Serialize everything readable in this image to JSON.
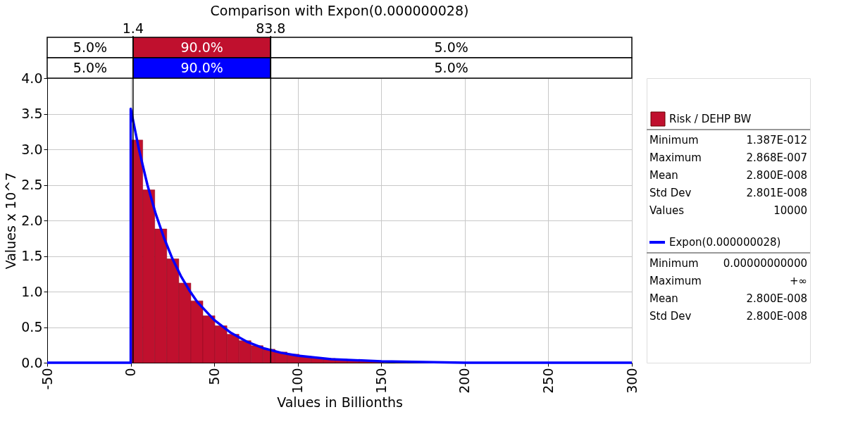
{
  "chart_data": [
    {
      "type": "histogram",
      "title": "Comparison with Expon(0.000000028)",
      "xlabel": "Values in Billionths",
      "ylabel": "Values x 10^7",
      "bins": [
        0,
        7.2,
        14.4,
        21.6,
        28.8,
        36,
        43.2,
        50.4,
        57.6,
        64.8,
        72,
        79.2,
        86.4,
        93.6,
        100.8,
        108,
        115.2,
        122.4,
        129.6,
        136.8,
        144,
        151.2,
        158.4,
        165.6
      ],
      "series": [
        {
          "name": "Risk / DEHP BW",
          "type": "histogram",
          "color": "#c0102e",
          "values": [
            3.13,
            2.43,
            1.88,
            1.46,
            1.12,
            0.87,
            0.66,
            0.52,
            0.4,
            0.31,
            0.24,
            0.19,
            0.15,
            0.12,
            0.09,
            0.07,
            0.06,
            0.05,
            0.04,
            0.03,
            0.02,
            null,
            0.01
          ]
        },
        {
          "name": "Expon(0.000000028)",
          "type": "line",
          "color": "#0000ff",
          "x": [
            -50,
            0,
            0,
            5,
            10,
            15,
            20,
            25,
            30,
            35,
            40,
            50,
            60,
            70,
            80,
            90,
            100,
            120,
            150,
            200,
            300
          ],
          "values": [
            0,
            0,
            3.57,
            2.99,
            2.5,
            2.09,
            1.75,
            1.46,
            1.22,
            1.02,
            0.85,
            0.6,
            0.42,
            0.29,
            0.2,
            0.14,
            0.1,
            0.05,
            0.02,
            0,
            0
          ]
        }
      ],
      "xlim": [
        -50,
        300
      ],
      "xticks": [
        -50,
        0,
        50,
        100,
        150,
        200,
        250,
        300
      ],
      "ylim": [
        0,
        4
      ],
      "yticks": [
        {
          "value": 0,
          "label": "0.0"
        },
        {
          "value": 0.5,
          "label": "0.5"
        },
        {
          "value": 1,
          "label": "1.0"
        },
        {
          "value": 1.5,
          "label": "1.5"
        },
        {
          "value": 2,
          "label": "2.0"
        },
        {
          "value": 2.5,
          "label": "2.5"
        },
        {
          "value": 3,
          "label": "3.0"
        },
        {
          "value": 3.5,
          "label": "3.5"
        },
        {
          "value": 4,
          "label": "4.0"
        }
      ],
      "grid": true,
      "legend": "right",
      "ref_lines": [
        {
          "axis": "x",
          "value": 1.4,
          "label": "1.4"
        },
        {
          "axis": "x",
          "value": 83.8,
          "label": "83.8"
        }
      ],
      "annotations": [
        "5.0%",
        "90.0%",
        "5.0%",
        "5.0%",
        "90.0%",
        "5.0%"
      ]
    },
    {
      "type": "other",
      "annotations": [
        "Minimum",
        "1.387E-012",
        "Maximum",
        "2.868E-007",
        "Mean",
        "2.800E-008",
        "Std Dev",
        "2.801E-008",
        "Values",
        "10000"
      ]
    },
    {
      "type": "other",
      "annotations": [
        "Minimum",
        "0.00000000000",
        "Maximum",
        "+∞",
        "Mean",
        "2.800E-008",
        "Std Dev",
        "2.800E-008"
      ]
    }
  ]
}
